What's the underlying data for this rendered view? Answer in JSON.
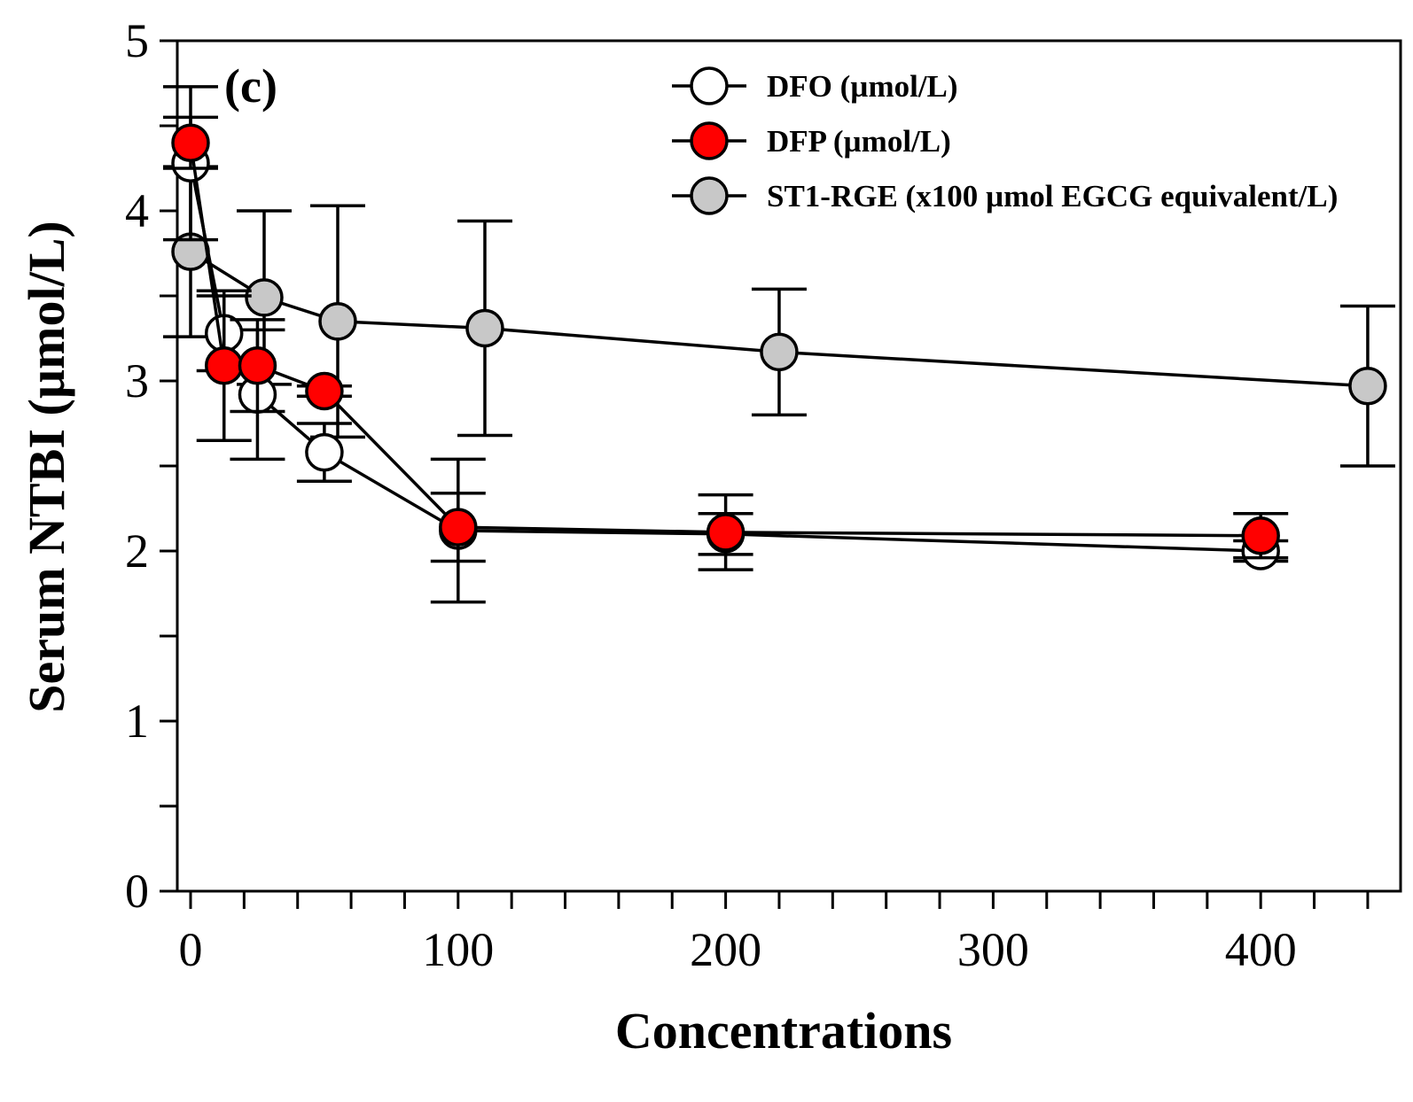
{
  "chart_data": {
    "type": "line",
    "panel_label": "(c)",
    "xlabel": "Concentrations",
    "ylabel": "Serum NTBI (µmol/L)",
    "xlim": [
      -5,
      440
    ],
    "ylim": [
      0,
      5
    ],
    "x_tick_labels": [
      "0",
      "100",
      "200",
      "300",
      "400"
    ],
    "x_tick_values": [
      0,
      100,
      200,
      300,
      400
    ],
    "y_tick_labels": [
      "0",
      "1",
      "2",
      "3",
      "4",
      "5"
    ],
    "y_tick_values": [
      0,
      1,
      2,
      3,
      4,
      5
    ],
    "legend_position": "top-right",
    "series": [
      {
        "name": "DFO (µmol/L)",
        "marker_fill": "#ffffff",
        "x": [
          0,
          12.5,
          25,
          50,
          100,
          200,
          400
        ],
        "y": [
          4.28,
          3.28,
          2.92,
          2.58,
          2.12,
          2.1,
          2.0
        ],
        "error": [
          0.45,
          0.22,
          0.38,
          0.17,
          0.42,
          0.12,
          0.06
        ]
      },
      {
        "name": "DFP (µmol/L)",
        "marker_fill": "#ff0000",
        "x": [
          0,
          12.5,
          25,
          50,
          100,
          200,
          400
        ],
        "y": [
          4.4,
          3.09,
          3.09,
          2.94,
          2.14,
          2.11,
          2.09
        ],
        "error": [
          0.15,
          0.44,
          0.27,
          0.03,
          0.2,
          0.22,
          0.13
        ]
      },
      {
        "name": "ST1-RGE (x100 µmol EGCG equivalent/L)",
        "marker_fill": "#c8c8c8",
        "x": [
          0,
          27.5,
          55,
          110,
          220,
          440
        ],
        "y": [
          3.76,
          3.49,
          3.35,
          3.31,
          3.17,
          2.97
        ],
        "error": [
          0.5,
          0.51,
          0.68,
          0.63,
          0.37,
          0.47
        ]
      }
    ]
  }
}
